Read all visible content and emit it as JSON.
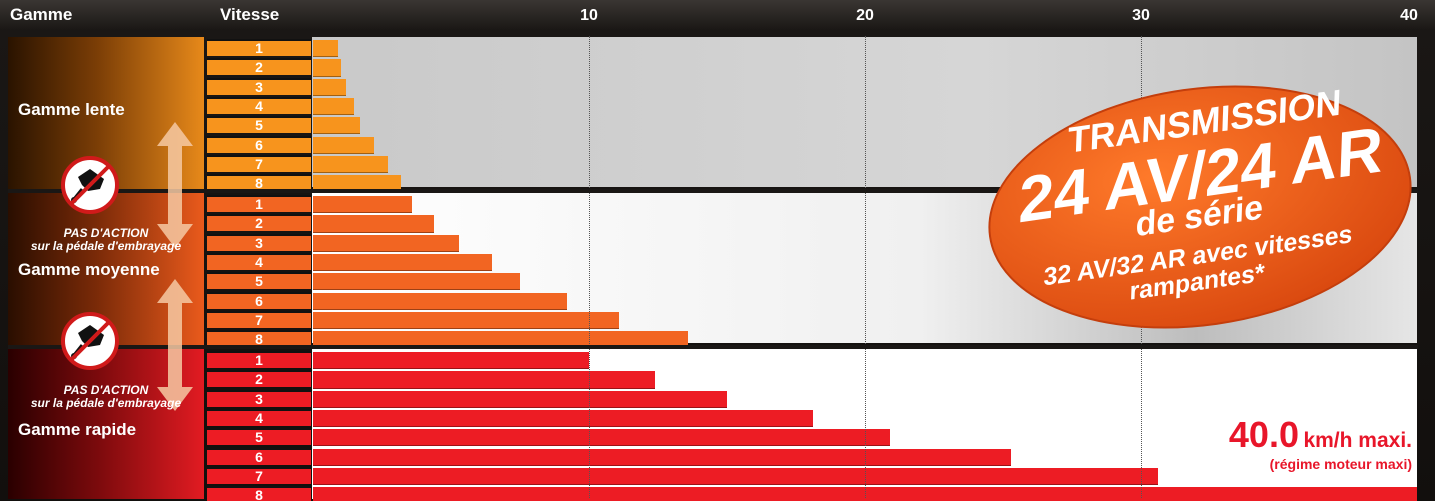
{
  "header": {
    "gamme_label": "Gamme",
    "vitesse_label": "Vitesse"
  },
  "ranges": [
    {
      "name": "Gamme lente",
      "color": "#f7941d"
    },
    {
      "name": "Gamme moyenne",
      "color": "#f26522"
    },
    {
      "name": "Gamme rapide",
      "color": "#ed1c24"
    }
  ],
  "gear_numbers": [
    "1",
    "2",
    "3",
    "4",
    "5",
    "6",
    "7",
    "8"
  ],
  "no_action": {
    "line1": "PAS D'ACTION",
    "line2": "sur la pédale d'embrayage"
  },
  "badge": {
    "line1": "TRANSMISSION",
    "line2": "24 AV/24 AR",
    "line3": "de série",
    "line4": "32 AV/32 AR avec vitesses",
    "line5": "rampantes*",
    "color": "#f05a1a"
  },
  "max_speed": {
    "value": "40.0",
    "unit": "km/h maxi.",
    "note": "(régime moteur maxi)"
  },
  "icons": {
    "pedal": "clutch-pedal-icon",
    "arrow": "up-down-arrow-icon"
  },
  "chart_data": {
    "type": "bar",
    "orientation": "horizontal",
    "x_ticks": [
      10,
      20,
      30,
      40
    ],
    "xlim": [
      0,
      40
    ],
    "grid": true,
    "series": [
      {
        "name": "Gamme lente",
        "values": [
          0.9,
          1.0,
          1.2,
          1.5,
          1.7,
          2.2,
          2.7,
          3.2
        ]
      },
      {
        "name": "Gamme moyenne",
        "values": [
          3.6,
          4.4,
          5.3,
          6.5,
          7.5,
          9.2,
          11.1,
          13.6
        ]
      },
      {
        "name": "Gamme rapide",
        "values": [
          10.0,
          12.4,
          15.0,
          18.1,
          20.9,
          25.3,
          30.6,
          40.0
        ]
      }
    ]
  }
}
